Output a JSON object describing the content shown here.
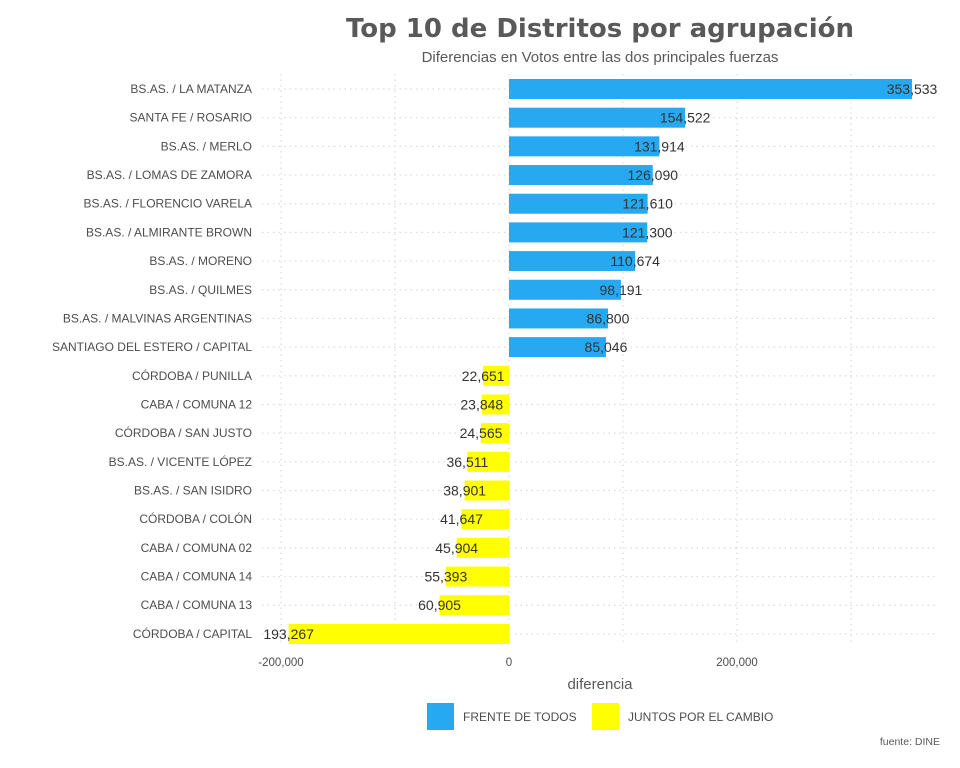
{
  "chart_data": {
    "type": "bar",
    "orientation": "horizontal",
    "title": "Top 10 de Distritos por agrupación",
    "subtitle": "Diferencias en Votos entre las dos principales fuerzas",
    "xlabel": "diferencia",
    "ylabel": "",
    "xlim": [
      -200000,
      375000
    ],
    "xticks": [
      -200000,
      0,
      200000
    ],
    "xtick_labels": [
      "-200,000",
      "0",
      "200,000"
    ],
    "grid": true,
    "legend_position": "bottom",
    "series": [
      {
        "name": "FRENTE DE TODOS",
        "color": "#27a9f2"
      },
      {
        "name": "JUNTOS POR EL CAMBIO",
        "color": "#ffff00"
      }
    ],
    "bars": [
      {
        "category": "BS.AS. / LA MATANZA",
        "value": 353533,
        "label": "353,533",
        "series": 0
      },
      {
        "category": "SANTA FE / ROSARIO",
        "value": 154522,
        "label": "154,522",
        "series": 0
      },
      {
        "category": "BS.AS. / MERLO",
        "value": 131914,
        "label": "131,914",
        "series": 0
      },
      {
        "category": "BS.AS. / LOMAS DE ZAMORA",
        "value": 126090,
        "label": "126,090",
        "series": 0
      },
      {
        "category": "BS.AS. / FLORENCIO VARELA",
        "value": 121610,
        "label": "121,610",
        "series": 0
      },
      {
        "category": "BS.AS. / ALMIRANTE BROWN",
        "value": 121300,
        "label": "121,300",
        "series": 0
      },
      {
        "category": "BS.AS. / MORENO",
        "value": 110674,
        "label": "110,674",
        "series": 0
      },
      {
        "category": "BS.AS. / QUILMES",
        "value": 98191,
        "label": "98,191",
        "series": 0
      },
      {
        "category": "BS.AS. / MALVINAS ARGENTINAS",
        "value": 86800,
        "label": "86,800",
        "series": 0
      },
      {
        "category": "SANTIAGO DEL ESTERO / CAPITAL",
        "value": 85046,
        "label": "85,046",
        "series": 0
      },
      {
        "category": "CÓRDOBA / PUNILLA",
        "value": -22651,
        "label": "22,651",
        "series": 1
      },
      {
        "category": "CABA / COMUNA 12",
        "value": -23848,
        "label": "23,848",
        "series": 1
      },
      {
        "category": "CÓRDOBA / SAN JUSTO",
        "value": -24565,
        "label": "24,565",
        "series": 1
      },
      {
        "category": "BS.AS. / VICENTE LÓPEZ",
        "value": -36511,
        "label": "36,511",
        "series": 1
      },
      {
        "category": "BS.AS. / SAN ISIDRO",
        "value": -38901,
        "label": "38,901",
        "series": 1
      },
      {
        "category": "CÓRDOBA / COLÓN",
        "value": -41647,
        "label": "41,647",
        "series": 1
      },
      {
        "category": "CABA / COMUNA 02",
        "value": -45904,
        "label": "45,904",
        "series": 1
      },
      {
        "category": "CABA / COMUNA 14",
        "value": -55393,
        "label": "55,393",
        "series": 1
      },
      {
        "category": "CABA / COMUNA 13",
        "value": -60905,
        "label": "60,905",
        "series": 1
      },
      {
        "category": "CÓRDOBA / CAPITAL",
        "value": -193267,
        "label": "193,267",
        "series": 1
      }
    ],
    "source": "fuente: DINE"
  }
}
